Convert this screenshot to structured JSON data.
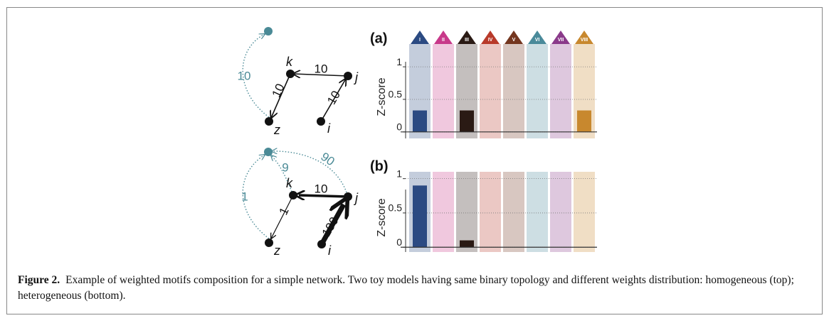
{
  "chart_data": [
    {
      "type": "bar",
      "title": "(a)",
      "y_label": "Z-score",
      "categories": [
        "I",
        "II",
        "III",
        "IV",
        "V",
        "VI",
        "VII",
        "VIII"
      ],
      "colors": [
        "#2b4a82",
        "#c8398a",
        "#2a1a14",
        "#b83a2a",
        "#74361f",
        "#4a8a9a",
        "#8a3a8a",
        "#c8882e"
      ],
      "series": [
        {
          "values": [
            0.33,
            0,
            0.33,
            0,
            0,
            0,
            0,
            0.33
          ]
        }
      ],
      "ylim": [
        -0.1,
        1.35
      ],
      "yticks": [
        0,
        0.5,
        1
      ],
      "grid": true
    },
    {
      "type": "bar",
      "title": "(b)",
      "y_label": "Z-score",
      "categories": [
        null,
        null,
        null,
        null,
        null,
        null,
        null,
        null
      ],
      "colors": [
        "#2b4a82",
        "#c8398a",
        "#2a1a14",
        "#b83a2a",
        "#74361f",
        "#4a8a9a",
        "#8a3a8a",
        "#c8882e"
      ],
      "series": [
        {
          "values": [
            0.9,
            0,
            0.1,
            0,
            0,
            0,
            0,
            0
          ]
        }
      ],
      "ylim": [
        -0.07,
        1.1
      ],
      "yticks": [
        0,
        0.5,
        1
      ],
      "grid": true
    }
  ],
  "diagrams": [
    {
      "nodes": [
        "k",
        "j",
        "z",
        "i"
      ],
      "edge_labels": [
        "10",
        "10",
        "10",
        "10"
      ]
    },
    {
      "nodes": [
        "k",
        "j",
        "z",
        "i"
      ],
      "edge_labels": [
        "10",
        "100",
        "1",
        "1",
        "9",
        "90"
      ]
    }
  ],
  "caption": {
    "label": "Figure 2.",
    "text": "Example of weighted motifs composition for a simple network. Two toy models having same binary topology and different weights distribution: homogeneous (top); heterogeneous (bottom)."
  }
}
